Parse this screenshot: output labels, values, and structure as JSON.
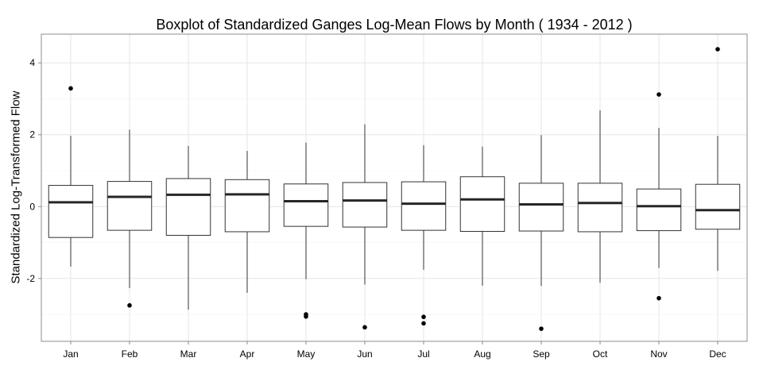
{
  "chart_data": {
    "type": "box",
    "title": "Boxplot of Standardized Ganges Log-Mean Flows by Month ( 1934 - 2012 )",
    "xlabel": "",
    "ylabel": "Standardized Log-Transformed Flow",
    "ylim": [
      -3.75,
      4.8
    ],
    "yticks": [
      -2,
      0,
      2,
      4
    ],
    "ytick_labels": [
      "-2",
      "0",
      "2",
      "4"
    ],
    "grid": true,
    "categories": [
      "Jan",
      "Feb",
      "Mar",
      "Apr",
      "May",
      "Jun",
      "Jul",
      "Aug",
      "Sep",
      "Oct",
      "Nov",
      "Dec"
    ],
    "boxes": [
      {
        "category": "Jan",
        "whisker_low": -1.67,
        "q1": -0.86,
        "median": 0.12,
        "q3": 0.59,
        "whisker_high": 1.97,
        "outliers": [
          3.29
        ]
      },
      {
        "category": "Feb",
        "whisker_low": -2.27,
        "q1": -0.66,
        "median": 0.27,
        "q3": 0.7,
        "whisker_high": 2.14,
        "outliers": [
          -2.75
        ]
      },
      {
        "category": "Mar",
        "whisker_low": -2.87,
        "q1": -0.8,
        "median": 0.33,
        "q3": 0.78,
        "whisker_high": 1.69,
        "outliers": []
      },
      {
        "category": "Apr",
        "whisker_low": -2.4,
        "q1": -0.7,
        "median": 0.34,
        "q3": 0.75,
        "whisker_high": 1.55,
        "outliers": []
      },
      {
        "category": "May",
        "whisker_low": -2.02,
        "q1": -0.55,
        "median": 0.15,
        "q3": 0.63,
        "whisker_high": 1.78,
        "outliers": [
          -3.0,
          -3.06
        ]
      },
      {
        "category": "Jun",
        "whisker_low": -2.17,
        "q1": -0.57,
        "median": 0.17,
        "q3": 0.67,
        "whisker_high": 2.29,
        "outliers": [
          -3.36
        ]
      },
      {
        "category": "Jul",
        "whisker_low": -1.76,
        "q1": -0.66,
        "median": 0.08,
        "q3": 0.69,
        "whisker_high": 1.71,
        "outliers": [
          -3.07,
          -3.25
        ]
      },
      {
        "category": "Aug",
        "whisker_low": -2.2,
        "q1": -0.69,
        "median": 0.2,
        "q3": 0.83,
        "whisker_high": 1.67,
        "outliers": []
      },
      {
        "category": "Sep",
        "whisker_low": -2.21,
        "q1": -0.68,
        "median": 0.06,
        "q3": 0.65,
        "whisker_high": 1.99,
        "outliers": [
          -3.4
        ]
      },
      {
        "category": "Oct",
        "whisker_low": -2.12,
        "q1": -0.7,
        "median": 0.1,
        "q3": 0.65,
        "whisker_high": 2.68,
        "outliers": []
      },
      {
        "category": "Nov",
        "whisker_low": -1.71,
        "q1": -0.67,
        "median": 0.01,
        "q3": 0.49,
        "whisker_high": 2.19,
        "outliers": [
          3.12,
          -2.55
        ]
      },
      {
        "category": "Dec",
        "whisker_low": -1.79,
        "q1": -0.63,
        "median": -0.1,
        "q3": 0.62,
        "whisker_high": 1.97,
        "outliers": [
          4.38
        ]
      }
    ],
    "colors": {
      "panel_bg": "#ffffff",
      "panel_border": "#8c8c8c",
      "grid_major": "#e6e6e6",
      "grid_minor": "#f3f3f3",
      "box_stroke": "#333333",
      "median": "#262626",
      "outlier": "#000000"
    }
  }
}
